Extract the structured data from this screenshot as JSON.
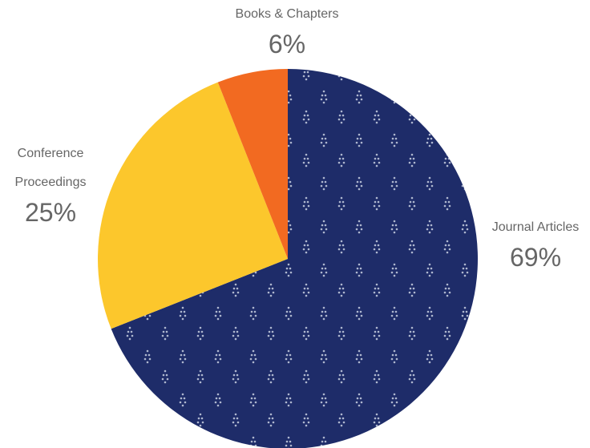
{
  "chart_data": {
    "type": "pie",
    "categories": [
      "Journal Articles",
      "Conference Proceedings",
      "Books & Chapters"
    ],
    "values": [
      69,
      25,
      6
    ],
    "value_labels": [
      "69%",
      "25%",
      "6%"
    ],
    "colors": [
      "#1e2c69",
      "#fcc72c",
      "#f26a21"
    ]
  }
}
